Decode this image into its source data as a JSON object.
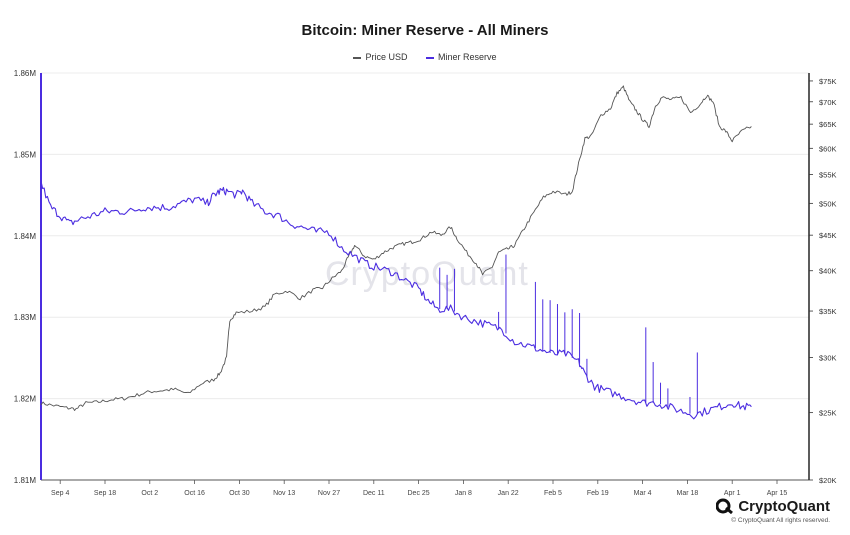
{
  "header": {
    "title": "Bitcoin: Miner Reserve - All Miners"
  },
  "legend": [
    {
      "label": "Price USD",
      "color": "#555555"
    },
    {
      "label": "Miner Reserve",
      "color": "#4b2de0"
    }
  ],
  "watermark": "CryptoQuant",
  "footer": {
    "brand": "CryptoQuant",
    "copyright": "© CryptoQuant All rights reserved."
  },
  "chart_data": {
    "type": "line",
    "title": "Bitcoin: Miner Reserve - All Miners",
    "x_ticks": [
      "Sep 4",
      "Sep 18",
      "Oct 2",
      "Oct 16",
      "Oct 30",
      "Nov 13",
      "Nov 27",
      "Dec 11",
      "Dec 25",
      "Jan 8",
      "Jan 22",
      "Feb 5",
      "Feb 19",
      "Mar 4",
      "Mar 18",
      "Apr 1",
      "Apr 15"
    ],
    "x_range_days": [
      0,
      240
    ],
    "y_left": {
      "label": "Miner Reserve",
      "range": [
        1810000,
        1860000
      ],
      "ticks": [
        1810000,
        1820000,
        1830000,
        1840000,
        1850000,
        1860000
      ],
      "tick_labels": [
        "1.81M",
        "1.82M",
        "1.83M",
        "1.84M",
        "1.85M",
        "1.86M"
      ]
    },
    "y_right": {
      "label": "Price USD",
      "scale": "log",
      "range": [
        20000,
        77000
      ],
      "ticks": [
        20000,
        25000,
        30000,
        35000,
        40000,
        45000,
        50000,
        55000,
        60000,
        65000,
        70000,
        75000
      ],
      "tick_labels": [
        "$20K",
        "$25K",
        "$30K",
        "$35K",
        "$40K",
        "$45K",
        "$50K",
        "$55K",
        "$60K",
        "$65K",
        "$70K",
        "$75K"
      ]
    },
    "series": [
      {
        "name": "Price USD",
        "axis": "right",
        "color": "#555555",
        "points": [
          [
            0,
            25800
          ],
          [
            4,
            25600
          ],
          [
            8,
            25400
          ],
          [
            11,
            25300
          ],
          [
            14,
            25800
          ],
          [
            18,
            25900
          ],
          [
            22,
            26100
          ],
          [
            26,
            26200
          ],
          [
            30,
            26500
          ],
          [
            34,
            26800
          ],
          [
            38,
            26900
          ],
          [
            42,
            27000
          ],
          [
            46,
            26600
          ],
          [
            50,
            27500
          ],
          [
            54,
            27900
          ],
          [
            56,
            28500
          ],
          [
            58,
            30000
          ],
          [
            59,
            34000
          ],
          [
            61,
            34800
          ],
          [
            66,
            35000
          ],
          [
            70,
            35500
          ],
          [
            73,
            37000
          ],
          [
            77,
            37400
          ],
          [
            81,
            36500
          ],
          [
            85,
            37500
          ],
          [
            88,
            37800
          ],
          [
            91,
            39000
          ],
          [
            94,
            40000
          ],
          [
            96,
            41800
          ],
          [
            98,
            43500
          ],
          [
            101,
            42000
          ],
          [
            104,
            41500
          ],
          [
            107,
            42500
          ],
          [
            110,
            43200
          ],
          [
            113,
            43700
          ],
          [
            116,
            44000
          ],
          [
            119,
            44500
          ],
          [
            122,
            45500
          ],
          [
            125,
            45000
          ],
          [
            128,
            46200
          ],
          [
            130,
            44500
          ],
          [
            133,
            42500
          ],
          [
            136,
            41000
          ],
          [
            138,
            39500
          ],
          [
            141,
            40500
          ],
          [
            143,
            42500
          ],
          [
            146,
            43000
          ],
          [
            148,
            43500
          ],
          [
            151,
            46000
          ],
          [
            154,
            48500
          ],
          [
            157,
            51000
          ],
          [
            160,
            52000
          ],
          [
            164,
            51500
          ],
          [
            166,
            52000
          ],
          [
            168,
            57000
          ],
          [
            170,
            62000
          ],
          [
            172,
            62500
          ],
          [
            175,
            67000
          ],
          [
            178,
            68500
          ],
          [
            180,
            72000
          ],
          [
            182,
            73500
          ],
          [
            184,
            70000
          ],
          [
            186,
            68000
          ],
          [
            188,
            66000
          ],
          [
            190,
            64500
          ],
          [
            192,
            69000
          ],
          [
            194,
            71000
          ],
          [
            197,
            70500
          ],
          [
            200,
            71000
          ],
          [
            203,
            67500
          ],
          [
            206,
            69500
          ],
          [
            208,
            71500
          ],
          [
            210,
            70000
          ],
          [
            212,
            64500
          ],
          [
            214,
            63500
          ],
          [
            216,
            61500
          ],
          [
            219,
            63500
          ],
          [
            222,
            64500
          ]
        ]
      },
      {
        "name": "Miner Reserve",
        "axis": "left",
        "color": "#4b2de0",
        "points": [
          [
            0,
            1846500
          ],
          [
            3,
            1843500
          ],
          [
            6,
            1842500
          ],
          [
            9,
            1841500
          ],
          [
            12,
            1842000
          ],
          [
            16,
            1842500
          ],
          [
            20,
            1843000
          ],
          [
            24,
            1843000
          ],
          [
            28,
            1843000
          ],
          [
            32,
            1843500
          ],
          [
            36,
            1843500
          ],
          [
            40,
            1843500
          ],
          [
            44,
            1844000
          ],
          [
            48,
            1844500
          ],
          [
            52,
            1844000
          ],
          [
            54,
            1845000
          ],
          [
            56,
            1845500
          ],
          [
            58,
            1845500
          ],
          [
            61,
            1845000
          ],
          [
            63,
            1845500
          ],
          [
            66,
            1844000
          ],
          [
            70,
            1843000
          ],
          [
            74,
            1842500
          ],
          [
            78,
            1841500
          ],
          [
            82,
            1841000
          ],
          [
            86,
            1840500
          ],
          [
            90,
            1840500
          ],
          [
            94,
            1838500
          ],
          [
            98,
            1837500
          ],
          [
            102,
            1836500
          ],
          [
            106,
            1836000
          ],
          [
            110,
            1835500
          ],
          [
            114,
            1834500
          ],
          [
            118,
            1833500
          ],
          [
            121,
            1832000
          ],
          [
            124,
            1831000
          ],
          [
            128,
            1831000
          ],
          [
            132,
            1830000
          ],
          [
            136,
            1829500
          ],
          [
            140,
            1829000
          ],
          [
            144,
            1828500
          ],
          [
            148,
            1827000
          ],
          [
            152,
            1826500
          ],
          [
            156,
            1826000
          ],
          [
            160,
            1825500
          ],
          [
            164,
            1825500
          ],
          [
            168,
            1824500
          ],
          [
            170,
            1823000
          ],
          [
            173,
            1821500
          ],
          [
            176,
            1821000
          ],
          [
            180,
            1820500
          ],
          [
            184,
            1820000
          ],
          [
            188,
            1819500
          ],
          [
            192,
            1819500
          ],
          [
            196,
            1819000
          ],
          [
            200,
            1818500
          ],
          [
            204,
            1818000
          ],
          [
            208,
            1818500
          ],
          [
            212,
            1819000
          ],
          [
            216,
            1819500
          ],
          [
            219,
            1819000
          ],
          [
            222,
            1819000
          ]
        ]
      }
    ]
  }
}
